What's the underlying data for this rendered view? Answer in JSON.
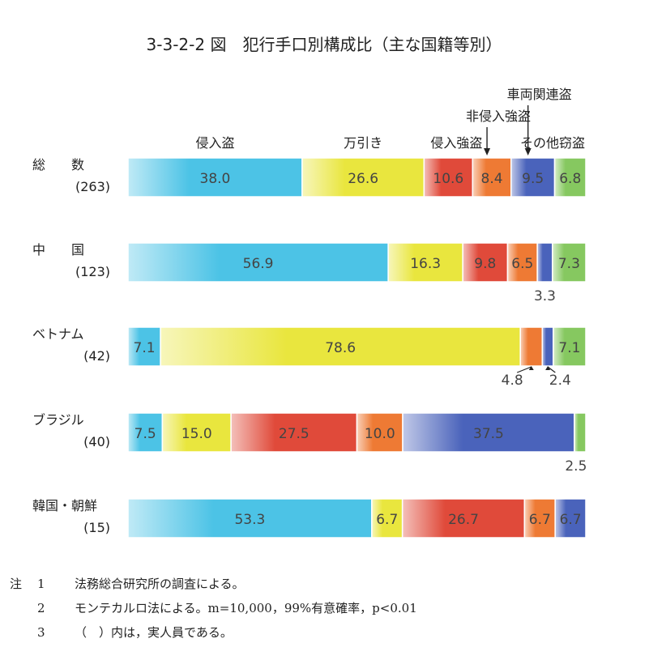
{
  "chart_data": {
    "type": "bar",
    "orientation": "horizontal-stacked-100",
    "title": "3-3-2-2 図　犯行手口別構成比（主な国籍等別）",
    "series": [
      {
        "name": "侵入盗",
        "color": "#4cc3e6"
      },
      {
        "name": "万引き",
        "color": "#e9e63e"
      },
      {
        "name": "侵入強盗",
        "color": "#e04a3a"
      },
      {
        "name": "非侵入強盗",
        "color": "#ee7a34"
      },
      {
        "name": "車両関連盗",
        "color": "#4a63bb"
      },
      {
        "name": "その他窃盗",
        "color": "#86c860"
      }
    ],
    "categories": [
      {
        "name": "総　　数",
        "n": "(263)",
        "values": [
          38.0,
          26.6,
          10.6,
          8.4,
          9.5,
          6.8
        ],
        "labels": [
          "38.0",
          "26.6",
          "10.6",
          "8.4",
          "9.5",
          "6.8"
        ]
      },
      {
        "name": "中　　国",
        "n": "(123)",
        "values": [
          56.9,
          16.3,
          9.8,
          6.5,
          3.3,
          7.3
        ],
        "labels": [
          "56.9",
          "16.3",
          "9.8",
          "6.5",
          "3.3",
          "7.3"
        ]
      },
      {
        "name": "ベトナム",
        "n": "(42)",
        "values": [
          7.1,
          78.6,
          0,
          4.8,
          2.4,
          7.1
        ],
        "labels": [
          "7.1",
          "78.6",
          "",
          "4.8",
          "2.4",
          "7.1"
        ]
      },
      {
        "name": "ブラジル",
        "n": "(40)",
        "values": [
          7.5,
          15.0,
          27.5,
          10.0,
          37.5,
          2.5
        ],
        "labels": [
          "7.5",
          "15.0",
          "27.5",
          "10.0",
          "37.5",
          "2.5"
        ]
      },
      {
        "name": "韓国・朝鮮",
        "n": "(15)",
        "values": [
          53.3,
          6.7,
          26.7,
          6.7,
          6.7,
          0
        ],
        "labels": [
          "53.3",
          "6.7",
          "26.7",
          "6.7",
          "6.7",
          ""
        ]
      }
    ]
  },
  "notes": [
    {
      "head": "注",
      "num": "1",
      "text": "法務総合研究所の調査による。"
    },
    {
      "head": "",
      "num": "2",
      "text": "モンテカルロ法による。m=10,000，99%有意確率，p<0.01"
    },
    {
      "head": "",
      "num": "3",
      "text": "（　）内は，実人員である。"
    }
  ]
}
